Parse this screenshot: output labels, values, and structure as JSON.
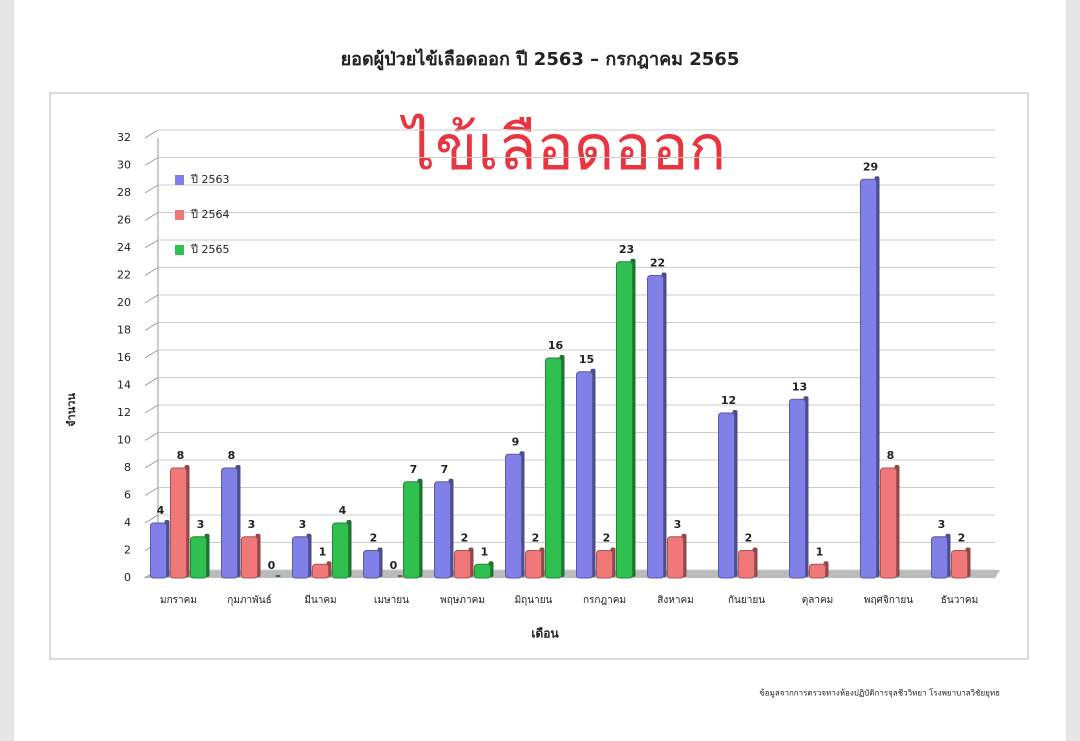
{
  "chart_data": {
    "type": "bar",
    "title": "ยอดผู้ป่วยไข้เลือดออก ปี 2563 – กรกฎาคม 2565",
    "annotation": "ไข้เลือดออก",
    "xlabel": "เดือน",
    "ylabel": "จำนวน",
    "source": "ข้อมูลจากการตรวจทางห้องปฏิบัติการจุลชีววิทยา โรงพยาบาลวิชัยยุทธ",
    "categories": [
      "มกราคม",
      "กุมภาพันธ์",
      "มีนาคม",
      "เมษายน",
      "พฤษภาคม",
      "มิถุนายน",
      "กรกฎาคม",
      "สิงหาคม",
      "กันยายน",
      "ตุลาคม",
      "พฤศจิกายน",
      "ธันวาคม"
    ],
    "series": [
      {
        "name": "ปี 2563",
        "color": "#8080e8",
        "values": [
          4,
          8,
          3,
          2,
          7,
          9,
          15,
          22,
          12,
          13,
          29,
          3
        ]
      },
      {
        "name": "ปี 2564",
        "color": "#f07878",
        "values": [
          8,
          3,
          1,
          0,
          2,
          2,
          2,
          3,
          2,
          1,
          8,
          2
        ]
      },
      {
        "name": "ปี 2565",
        "color": "#30c050",
        "values": [
          3,
          0,
          4,
          7,
          1,
          16,
          23,
          null,
          null,
          null,
          null,
          null
        ]
      }
    ],
    "ylim": [
      0,
      32
    ],
    "yticks": [
      0,
      2,
      4,
      6,
      8,
      10,
      12,
      14,
      16,
      18,
      20,
      22,
      24,
      26,
      28,
      30,
      32
    ],
    "grid": true,
    "legend": "upper left"
  }
}
